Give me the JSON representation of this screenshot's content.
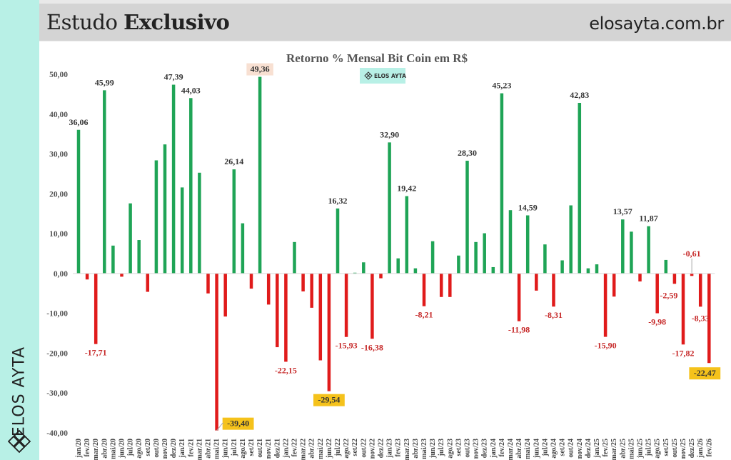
{
  "header": {
    "title_regular": "Estudo",
    "title_bold": "Exclusivo",
    "site": "elosayta.com.br"
  },
  "sidebar": {
    "brand": "ELOS AYTA",
    "logo_icon": "lattice-diamond-logo-icon"
  },
  "watermark": {
    "label": "ELOS AYTA",
    "icon": "lattice-diamond-logo-icon"
  },
  "colors": {
    "positive": "#1fa456",
    "negative": "#e01b1b",
    "sidebar": "#b8f0e6",
    "header": "#d4d4d4",
    "highlight_max": "#f8e0d2",
    "highlight_min": "#f5c21b",
    "negative_label": "#c62828"
  },
  "chart_data": {
    "type": "bar",
    "title": "Retorno % Mensal Bit Coin em R$",
    "xlabel": "",
    "ylabel": "",
    "ylim": [
      -40,
      50
    ],
    "yticks": [
      50,
      40,
      30,
      20,
      10,
      0,
      -10,
      -20,
      -30,
      -40
    ],
    "ytick_labels": [
      "50,00",
      "40,00",
      "30,00",
      "20,00",
      "10,00",
      "0,00",
      "-10,00",
      "-20,00",
      "-30,00",
      "-40,00"
    ],
    "grid": false,
    "legend": "none",
    "categories": [
      "jan/20",
      "fev/20",
      "mar/20",
      "abr/20",
      "mai/20",
      "jun/20",
      "jul/20",
      "ago/20",
      "set/20",
      "out/20",
      "nov/20",
      "dez/20",
      "jan/21",
      "fev/21",
      "mar/21",
      "abr/21",
      "mai/21",
      "jun/21",
      "jul/21",
      "ago/21",
      "set/21",
      "out/21",
      "nov/21",
      "dez/21",
      "jan/22",
      "fev/22",
      "mar/22",
      "abr/22",
      "mai/22",
      "jun/22",
      "jul/22",
      "ago/22",
      "set/22",
      "out/22",
      "nov/22",
      "dez/22",
      "jan/23",
      "fev/23",
      "mar/23",
      "abr/23",
      "mai/23",
      "jun/23",
      "jul/23",
      "ago/23",
      "set/23",
      "out/23",
      "nov/23",
      "dez/23",
      "jan/24",
      "fev/24",
      "mar/24",
      "abr/24",
      "mai/24",
      "jun/24",
      "jul/24",
      "ago/24",
      "set/24",
      "out/24",
      "nov/24",
      "dez/24",
      "jan/25",
      "fev/25",
      "mar/25",
      "abr/25",
      "mai/25",
      "jun/25",
      "jul/25",
      "ago/25",
      "set/25",
      "out/25",
      "nov/25",
      "dez/25",
      "jan/26",
      "fev/26"
    ],
    "values": [
      36.06,
      -1.5,
      -17.71,
      45.99,
      7.0,
      -0.8,
      17.6,
      8.4,
      -4.6,
      28.4,
      32.4,
      47.39,
      21.6,
      44.03,
      25.3,
      -5.0,
      -39.4,
      -10.8,
      26.14,
      12.6,
      -3.8,
      49.36,
      -7.8,
      -18.5,
      -22.15,
      7.9,
      -4.5,
      -8.6,
      -21.8,
      -29.54,
      16.32,
      -15.93,
      0.2,
      2.8,
      -16.38,
      -1.2,
      32.9,
      3.8,
      19.42,
      1.3,
      -8.21,
      8.1,
      -5.9,
      -5.9,
      4.5,
      28.3,
      7.9,
      10.1,
      1.6,
      45.23,
      15.9,
      -11.98,
      14.59,
      -4.3,
      7.3,
      -8.31,
      3.3,
      17.1,
      42.83,
      1.3,
      2.3,
      -15.9,
      -5.8,
      13.57,
      10.5,
      -2.0,
      11.87,
      -9.98,
      3.4,
      -2.59,
      -17.82,
      -0.61,
      -8.33,
      -22.47
    ],
    "data_labels": [
      {
        "index": 0,
        "text": "36,06"
      },
      {
        "index": 2,
        "text": "-17,71"
      },
      {
        "index": 3,
        "text": "45,99"
      },
      {
        "index": 11,
        "text": "47,39"
      },
      {
        "index": 13,
        "text": "44,03"
      },
      {
        "index": 16,
        "text": "-39,40",
        "highlight": "min"
      },
      {
        "index": 18,
        "text": "26,14"
      },
      {
        "index": 21,
        "text": "49,36",
        "highlight": "max"
      },
      {
        "index": 24,
        "text": "-22,15"
      },
      {
        "index": 29,
        "text": "-29,54",
        "highlight": "min"
      },
      {
        "index": 30,
        "text": "16,32"
      },
      {
        "index": 31,
        "text": "-15,93"
      },
      {
        "index": 34,
        "text": "-16,38"
      },
      {
        "index": 36,
        "text": "32,90"
      },
      {
        "index": 38,
        "text": "19,42"
      },
      {
        "index": 40,
        "text": "-8,21"
      },
      {
        "index": 45,
        "text": "28,30"
      },
      {
        "index": 49,
        "text": "45,23"
      },
      {
        "index": 51,
        "text": "-11,98"
      },
      {
        "index": 52,
        "text": "14,59"
      },
      {
        "index": 55,
        "text": "-8,31"
      },
      {
        "index": 58,
        "text": "42,83"
      },
      {
        "index": 61,
        "text": "-15,90"
      },
      {
        "index": 63,
        "text": "13,57"
      },
      {
        "index": 66,
        "text": "11,87"
      },
      {
        "index": 67,
        "text": "-9,98"
      },
      {
        "index": 69,
        "text": "-2,59"
      },
      {
        "index": 70,
        "text": "-17,82"
      },
      {
        "index": 71,
        "text": "-0,61"
      },
      {
        "index": 72,
        "text": "-8,33"
      },
      {
        "index": 73,
        "text": "-22,47",
        "highlight": "min"
      }
    ]
  }
}
